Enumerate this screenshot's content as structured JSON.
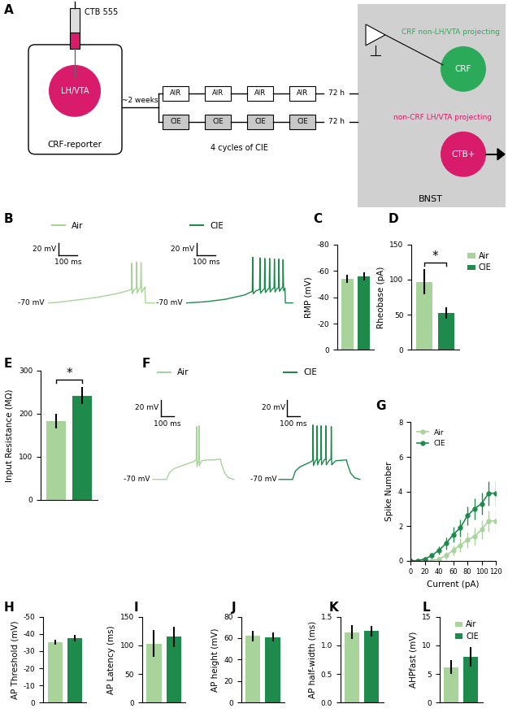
{
  "diagram": {
    "panel_label": "A",
    "syringe_label": "CTB 555",
    "injection_site": "LH/VTA",
    "mouse_line": "CRF-reporter",
    "interval": "~2 weeks",
    "air_cycles": [
      "AIR",
      "AIR",
      "AIR",
      "AIR"
    ],
    "cie_cycles": [
      "CIE",
      "CIE",
      "CIE",
      "CIE"
    ],
    "protocol": "4 cycles of CIE",
    "withdrawal": [
      "72 h",
      "72 h"
    ],
    "region": "BNST",
    "injection_color": "#d81b6a",
    "cells": [
      {
        "label": "CRF",
        "description": "CRF non-LH/VTA projecting",
        "color": "#2bab5a"
      },
      {
        "label": "CTB+",
        "description": "non-CRF LH/VTA projecting",
        "color": "#d81b6a"
      }
    ]
  },
  "chart_data": [
    {
      "panel_label": "B",
      "type": "trace",
      "legend": "upper left",
      "tick_labels": false,
      "xlim": [
        -20,
        560
      ],
      "ylim": [
        -80,
        40
      ],
      "scale_bars": {
        "x": 100,
        "x_label": "100 ms",
        "y": 20,
        "y_label": "20 mV"
      },
      "baseline": {
        "value": -70,
        "label": "-70 mV"
      },
      "traces": [
        {
          "name": "Air",
          "color": "#a8d49b",
          "x": [
            0,
            50,
            100,
            150,
            200,
            250,
            300,
            350,
            400,
            430,
            432,
            435,
            445,
            455,
            457,
            460,
            470,
            478,
            480,
            483,
            495,
            500,
            503,
            550
          ],
          "values": [
            -70,
            -69,
            -67,
            -65,
            -63,
            -61,
            -58,
            -55,
            -51,
            -48,
            -5,
            -55,
            -48,
            -46,
            -3,
            -54,
            -47,
            -45,
            -4,
            -53,
            -46,
            -44,
            -70,
            -70
          ]
        },
        {
          "name": "CIE",
          "color": "#1e8b4d",
          "x": [
            0,
            100,
            200,
            300,
            340,
            342,
            345,
            360,
            378,
            380,
            383,
            395,
            403,
            405,
            408,
            420,
            428,
            430,
            433,
            445,
            453,
            455,
            458,
            470,
            476,
            478,
            481,
            492,
            498,
            500,
            503,
            510,
            512,
            550
          ],
          "values": [
            -70,
            -68,
            -64,
            -57,
            -51,
            5,
            -55,
            -50,
            -48,
            4,
            -54,
            -49,
            -47,
            3,
            -53,
            -48,
            -46,
            3,
            -52,
            -47,
            -45,
            2,
            -52,
            -46,
            -45,
            2,
            -51,
            -46,
            -44,
            1,
            -50,
            -46,
            -70,
            -70
          ]
        }
      ]
    },
    {
      "panel_label": "C",
      "type": "bar",
      "y_label": "RMP (mV)",
      "tick_labels": "y",
      "values": [
        -54,
        -56
      ],
      "errors": [
        3,
        3
      ],
      "colors": [
        "#a8d49b",
        "#1e8b4d"
      ],
      "ylim": [
        0,
        -80
      ],
      "yticks": [
        0,
        -20,
        -40,
        -60,
        -80
      ]
    },
    {
      "panel_label": "D",
      "type": "bar",
      "y_label": "Rheobase (pA)",
      "tick_labels": "y",
      "legend": "right",
      "series": [
        {
          "name": "Air",
          "color": "#a8d49b",
          "values": [
            97
          ],
          "errors": [
            18
          ]
        },
        {
          "name": "CIE",
          "color": "#1e8b4d",
          "values": [
            53
          ],
          "errors": [
            8
          ]
        }
      ],
      "ylim": [
        0,
        150
      ],
      "yticks": [
        0,
        50,
        100,
        150
      ],
      "annotations": [
        {
          "text": "*"
        }
      ]
    },
    {
      "panel_label": "E",
      "type": "bar",
      "y_label": "Input Resistance (MΩ)",
      "tick_labels": "y",
      "values": [
        182,
        242
      ],
      "errors": [
        17,
        20
      ],
      "colors": [
        "#a8d49b",
        "#1e8b4d"
      ],
      "ylim": [
        0,
        300
      ],
      "yticks": [
        0,
        100,
        200,
        300
      ],
      "annotations": [
        {
          "text": "*"
        }
      ]
    },
    {
      "panel_label": "F",
      "type": "trace",
      "legend": "upper left",
      "tick_labels": false,
      "xlim": [
        -20,
        620
      ],
      "ylim": [
        -80,
        40
      ],
      "scale_bars": {
        "x": 100,
        "x_label": "100 ms",
        "y": 20,
        "y_label": "20 mV"
      },
      "baseline": {
        "value": -70,
        "label": "-70 mV"
      },
      "traces": [
        {
          "name": "Air",
          "color": "#a8d49b",
          "x": [
            0,
            100,
            120,
            150,
            200,
            250,
            300,
            320,
            322,
            325,
            338,
            340,
            343,
            360,
            400,
            450,
            500,
            505,
            530,
            560,
            600
          ],
          "values": [
            -70,
            -70,
            -62,
            -57,
            -54,
            -51,
            -48,
            -46,
            -5,
            -54,
            -46,
            -4,
            -53,
            -47,
            -46,
            -46,
            -45,
            -50,
            -62,
            -68,
            -70
          ]
        },
        {
          "name": "CIE",
          "color": "#1e8b4d",
          "x": [
            0,
            100,
            120,
            150,
            200,
            240,
            250,
            252,
            255,
            270,
            280,
            282,
            285,
            300,
            310,
            312,
            315,
            335,
            345,
            347,
            350,
            375,
            385,
            387,
            390,
            420,
            500,
            505,
            530,
            560,
            600
          ],
          "values": [
            -70,
            -70,
            -60,
            -55,
            -51,
            -48,
            -46,
            -3,
            -53,
            -47,
            -45,
            -4,
            -52,
            -46,
            -45,
            -4,
            -52,
            -46,
            -45,
            -4,
            -52,
            -46,
            -45,
            -5,
            -52,
            -47,
            -46,
            -50,
            -62,
            -68,
            -70
          ]
        }
      ]
    },
    {
      "panel_label": "G",
      "type": "line",
      "x_label": "Current (pA)",
      "y_label": "Spike Number",
      "legend": "upper left",
      "x": [
        0,
        10,
        20,
        30,
        40,
        50,
        60,
        70,
        80,
        90,
        100,
        110,
        120
      ],
      "xlim": [
        0,
        120
      ],
      "xticks": [
        0,
        20,
        40,
        60,
        80,
        100,
        120
      ],
      "ylim": [
        0,
        8
      ],
      "yticks": [
        0,
        2,
        4,
        6,
        8
      ],
      "series": [
        {
          "name": "Air",
          "color": "#a8d49b",
          "marker": "circle",
          "values": [
            0,
            0,
            0,
            0,
            0.1,
            0.3,
            0.6,
            0.9,
            1.2,
            1.4,
            1.8,
            2.3,
            2.3
          ],
          "errors": [
            0,
            0,
            0,
            0,
            0.1,
            0.2,
            0.3,
            0.4,
            0.45,
            0.5,
            0.55,
            0.6,
            0.6
          ]
        },
        {
          "name": "CIE",
          "color": "#1e8b4d",
          "marker": "circle",
          "values": [
            0,
            0,
            0.1,
            0.3,
            0.6,
            1.0,
            1.5,
            1.9,
            2.6,
            3.0,
            3.3,
            3.9,
            3.9
          ],
          "errors": [
            0,
            0,
            0.1,
            0.15,
            0.25,
            0.35,
            0.45,
            0.5,
            0.55,
            0.6,
            0.65,
            0.7,
            0.7
          ]
        }
      ]
    },
    {
      "panel_label": "H",
      "type": "bar",
      "y_label": "AP Threshold (mV)",
      "tick_labels": "y",
      "values": [
        -35,
        -37.5
      ],
      "errors": [
        1.5,
        2.0
      ],
      "colors": [
        "#a8d49b",
        "#1e8b4d"
      ],
      "ylim": [
        0,
        -50
      ],
      "yticks": [
        0,
        -10,
        -20,
        -30,
        -40,
        -50
      ]
    },
    {
      "panel_label": "I",
      "type": "bar",
      "y_label": "AP Latency (ms)",
      "tick_labels": "y",
      "values": [
        103,
        115
      ],
      "errors": [
        23,
        18
      ],
      "colors": [
        "#a8d49b",
        "#1e8b4d"
      ],
      "ylim": [
        0,
        150
      ],
      "yticks": [
        0,
        50,
        100,
        150
      ]
    },
    {
      "panel_label": "J",
      "type": "bar",
      "y_label": "AP height (mV)",
      "tick_labels": "y",
      "values": [
        62,
        61
      ],
      "errors": [
        5,
        4
      ],
      "colors": [
        "#a8d49b",
        "#1e8b4d"
      ],
      "ylim": [
        0,
        80
      ],
      "yticks": [
        0,
        20,
        40,
        60,
        80
      ]
    },
    {
      "panel_label": "K",
      "type": "bar",
      "y_label": "AP half-width (ms)",
      "tick_labels": "y",
      "values": [
        1.23,
        1.25
      ],
      "errors": [
        0.12,
        0.09
      ],
      "colors": [
        "#a8d49b",
        "#1e8b4d"
      ],
      "ylim": [
        0.0,
        1.5
      ],
      "yticks": [
        0.0,
        0.5,
        1.0,
        1.5
      ]
    },
    {
      "panel_label": "L",
      "type": "bar",
      "y_label": "AHPfast (mV)",
      "tick_labels": "y",
      "legend": "upper right",
      "series": [
        {
          "name": "Air",
          "color": "#a8d49b",
          "values": [
            6.2
          ],
          "errors": [
            1.2
          ]
        },
        {
          "name": "CIE",
          "color": "#1e8b4d",
          "values": [
            8.0
          ],
          "errors": [
            1.7
          ]
        }
      ],
      "ylim": [
        0,
        15
      ],
      "yticks": [
        0,
        5,
        10,
        15
      ]
    }
  ]
}
